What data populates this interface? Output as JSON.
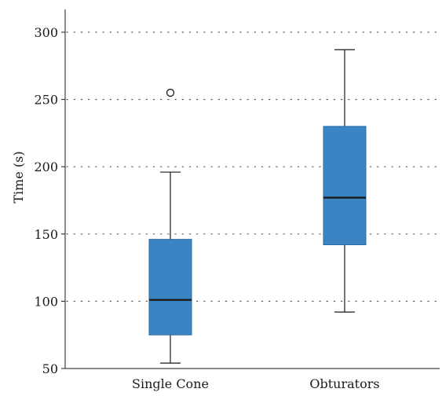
{
  "chart_data": {
    "type": "boxplot",
    "ylabel": "Time (s)",
    "xlabel": "",
    "title": "",
    "ylim": [
      50,
      300
    ],
    "yticks": [
      50,
      100,
      150,
      200,
      250,
      300
    ],
    "ytick_labels": [
      "50",
      "100",
      "150",
      "200",
      "250",
      "300"
    ],
    "grid": "horizontal dotted",
    "categories": [
      "Single Cone",
      "Obturators"
    ],
    "series": [
      {
        "category": "Single Cone",
        "min": 54,
        "q1": 75,
        "median": 101,
        "q3": 146,
        "max": 196,
        "outliers": [
          255
        ]
      },
      {
        "category": "Obturators",
        "min": 92,
        "q1": 142,
        "median": 177,
        "q3": 230,
        "max": 287,
        "outliers": []
      }
    ],
    "colors": {
      "box_fill": "#3b84c4",
      "box_stroke": "#2c6aa0",
      "median": "#1a1a1a",
      "whisker": "#1a1a1a",
      "grid": "#555555",
      "axis": "#1a1a1a"
    }
  }
}
